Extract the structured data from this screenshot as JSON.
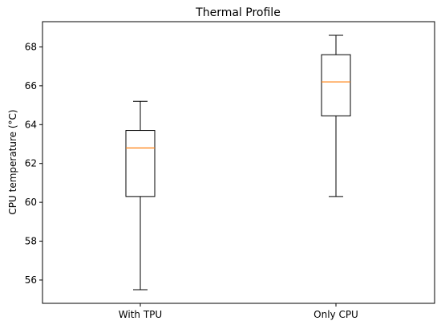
{
  "chart_data": {
    "type": "box",
    "title": "Thermal Profile",
    "xlabel": "",
    "ylabel": "CPU temperature (°C)",
    "ylim": [
      54.8,
      69.3
    ],
    "yticks": [
      56,
      58,
      60,
      62,
      64,
      66,
      68
    ],
    "categories": [
      "With TPU",
      "Only CPU"
    ],
    "boxes": [
      {
        "label": "With TPU",
        "whisker_low": 55.5,
        "q1": 60.3,
        "median": 62.8,
        "q3": 63.7,
        "whisker_high": 65.2
      },
      {
        "label": "Only CPU",
        "whisker_low": 60.3,
        "q1": 64.45,
        "median": 66.2,
        "q3": 67.6,
        "whisker_high": 68.6
      }
    ],
    "colors": {
      "box": "#000000",
      "median": "#ff7f0e",
      "axes": "#000000"
    },
    "grid": false,
    "legend": "none"
  }
}
